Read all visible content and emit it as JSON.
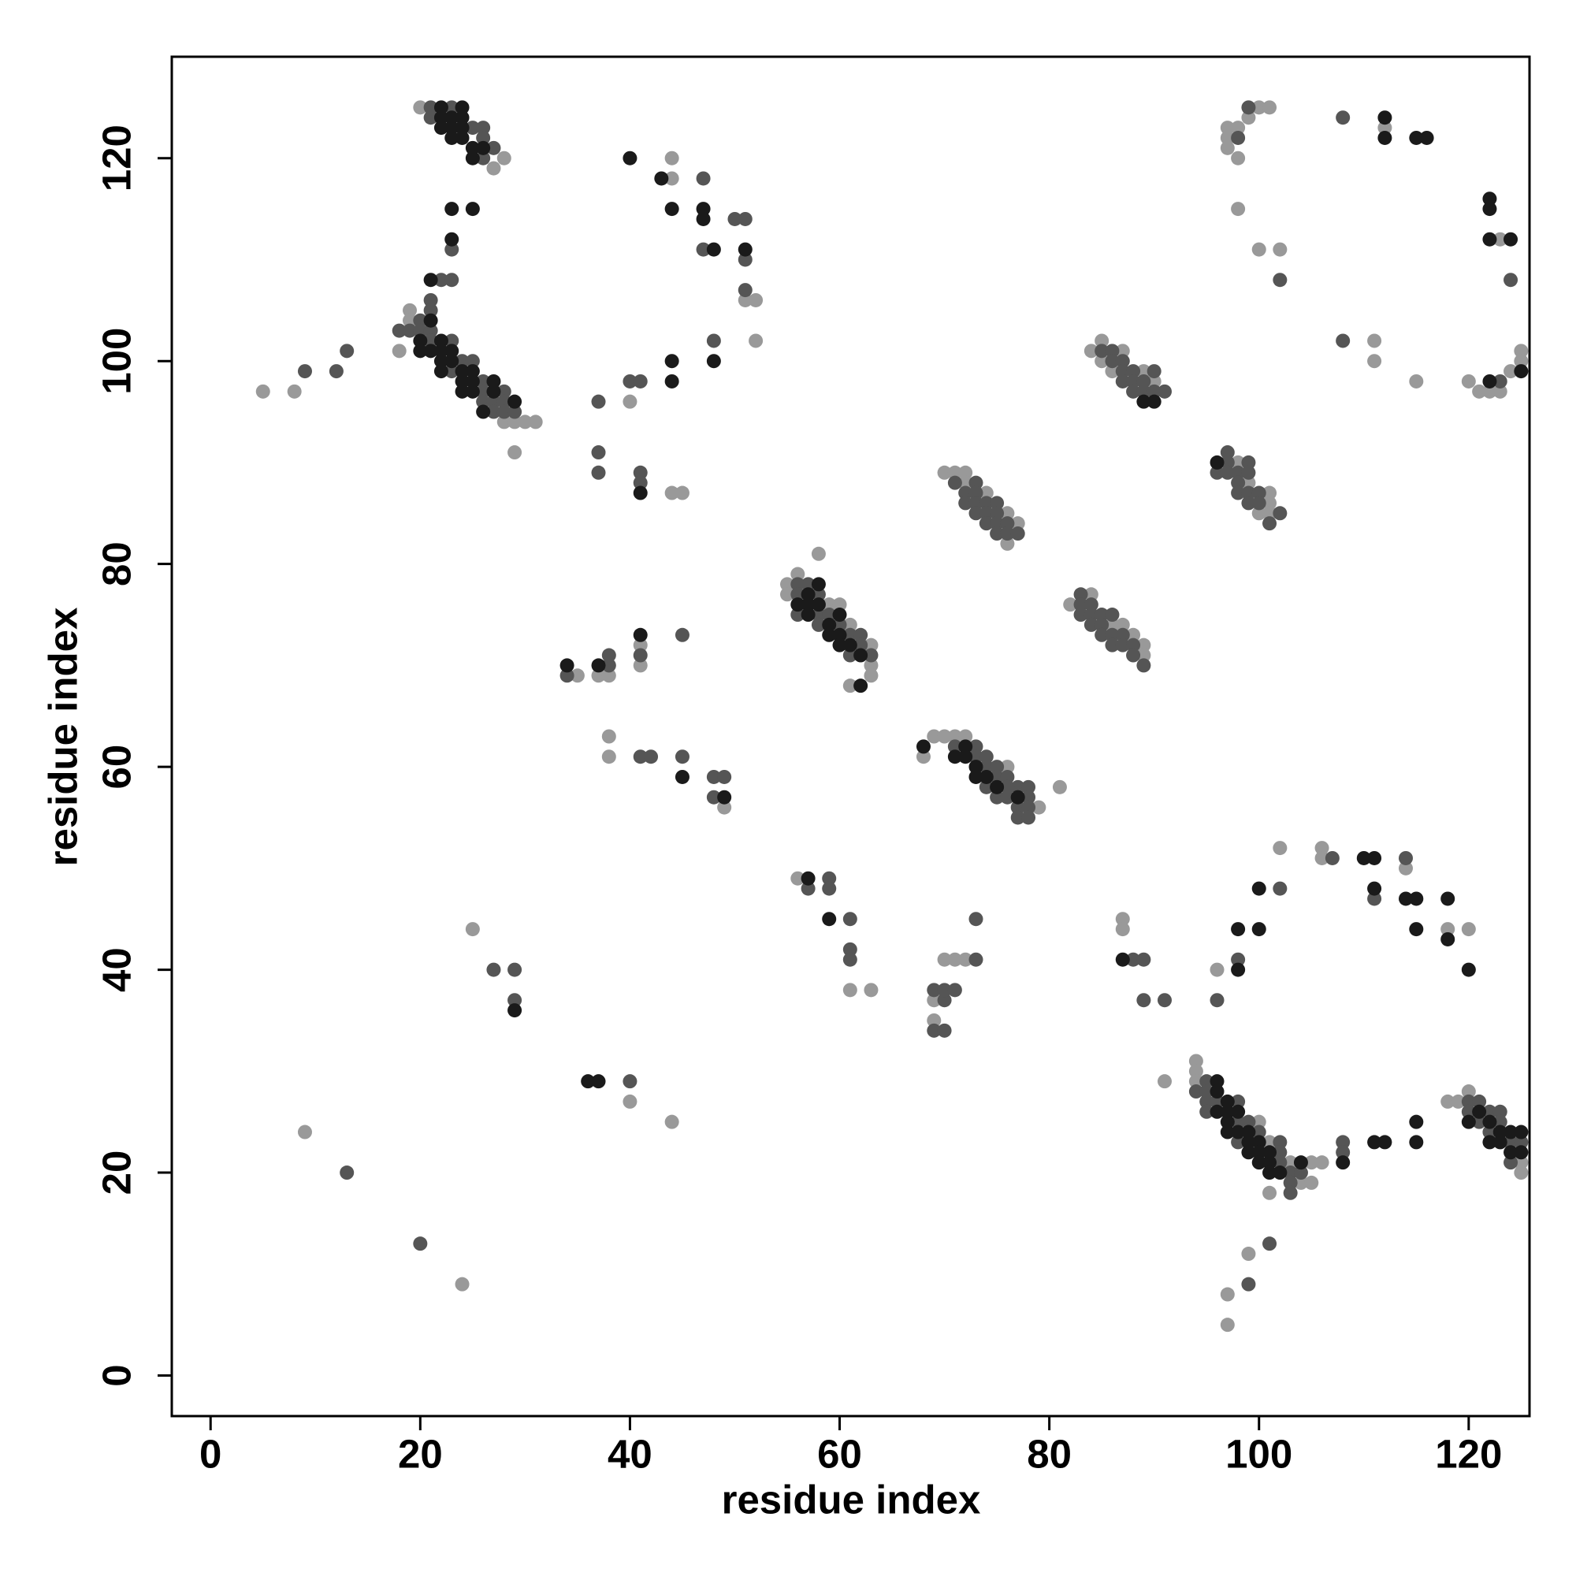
{
  "chart_data": {
    "type": "scatter",
    "xlabel": "residue index",
    "ylabel": "residue index",
    "xlim": [
      -3.7,
      125.8
    ],
    "ylim": [
      -4,
      130
    ],
    "xticks": [
      0,
      20,
      40,
      60,
      80,
      100,
      120
    ],
    "yticks": [
      0,
      20,
      40,
      60,
      80,
      100,
      120
    ],
    "series": [
      {
        "color": "#999999",
        "x": [
          20,
          27,
          28,
          19,
          19,
          18,
          28,
          29,
          30,
          31,
          29,
          5,
          8,
          44,
          44,
          51,
          52,
          52,
          40,
          44,
          45,
          35,
          37,
          38,
          41,
          41,
          38,
          38,
          49,
          58,
          56,
          55,
          55,
          59,
          60,
          61,
          63,
          63,
          63,
          61,
          68,
          69,
          70,
          71,
          72,
          76,
          79,
          81,
          70,
          71,
          72,
          72,
          74,
          76,
          77,
          76,
          82,
          84,
          86,
          87,
          88,
          89,
          89,
          84,
          85,
          87,
          85,
          86,
          89,
          90,
          98,
          99,
          101,
          101,
          100,
          101,
          97,
          98,
          97,
          97,
          98,
          99,
          100,
          101,
          98,
          100,
          102,
          112,
          123,
          111,
          111,
          115,
          120,
          121,
          122,
          123,
          124,
          125,
          125,
          56,
          61,
          63,
          69,
          69,
          70,
          71,
          72,
          87,
          87,
          91,
          96,
          102,
          106,
          106,
          114,
          118,
          120,
          94,
          94,
          94,
          100,
          101,
          103,
          104,
          105,
          101,
          105,
          106,
          118,
          119,
          120,
          125,
          125,
          9,
          24,
          25,
          40,
          44,
          97,
          97,
          99
        ],
        "values": [
          125,
          119,
          120,
          105,
          104,
          101,
          94,
          94,
          94,
          94,
          91,
          97,
          97,
          120,
          118,
          106,
          106,
          102,
          96,
          87,
          87,
          69,
          69,
          69,
          72,
          70,
          63,
          61,
          56,
          81,
          79,
          78,
          77,
          76,
          76,
          74,
          72,
          70,
          69,
          68,
          61,
          63,
          63,
          63,
          63,
          60,
          56,
          58,
          89,
          89,
          89,
          88,
          87,
          85,
          84,
          82,
          76,
          77,
          74,
          74,
          73,
          72,
          71,
          101,
          102,
          101,
          100,
          99,
          99,
          98,
          90,
          88,
          87,
          86,
          85,
          85,
          123,
          123,
          122,
          121,
          120,
          124,
          125,
          125,
          115,
          111,
          111,
          123,
          112,
          102,
          100,
          98,
          98,
          97,
          97,
          97,
          99,
          101,
          100,
          49,
          38,
          38,
          37,
          35,
          41,
          41,
          41,
          45,
          44,
          29,
          40,
          52,
          52,
          51,
          50,
          44,
          44,
          31,
          30,
          29,
          25,
          23,
          21,
          19,
          19,
          18,
          21,
          21,
          27,
          27,
          28,
          21,
          20,
          24,
          9,
          44,
          27,
          25,
          8,
          5,
          12
        ]
      },
      {
        "color": "#555555",
        "x": [
          21,
          21,
          23,
          25,
          26,
          26,
          27,
          26,
          23,
          22,
          23,
          21,
          21,
          20,
          18,
          19,
          20,
          21,
          23,
          21,
          24,
          25,
          23,
          26,
          26,
          28,
          26,
          27,
          28,
          27,
          28,
          29,
          9,
          12,
          13,
          47,
          50,
          51,
          47,
          51,
          51,
          48,
          40,
          41,
          37,
          37,
          37,
          41,
          41,
          34,
          38,
          38,
          41,
          45,
          41,
          42,
          45,
          48,
          49,
          48,
          56,
          57,
          56,
          58,
          56,
          58,
          59,
          58,
          60,
          61,
          62,
          62,
          61,
          63,
          71,
          73,
          73,
          74,
          74,
          75,
          75,
          76,
          77,
          78,
          74,
          76,
          75,
          76,
          78,
          77,
          78,
          77,
          78,
          71,
          73,
          72,
          73,
          72,
          73,
          74,
          75,
          73,
          74,
          75,
          74,
          75,
          76,
          75,
          76,
          77,
          83,
          83,
          84,
          83,
          84,
          85,
          86,
          84,
          85,
          85,
          86,
          87,
          86,
          87,
          88,
          88,
          89,
          85,
          86,
          86,
          87,
          87,
          88,
          90,
          87,
          88,
          89,
          88,
          89,
          90,
          91,
          97,
          97,
          99,
          96,
          97,
          98,
          99,
          98,
          98,
          99,
          100,
          99,
          100,
          102,
          101,
          98,
          99,
          102,
          108,
          124,
          108,
          123,
          57,
          59,
          59,
          61,
          61,
          61,
          69,
          69,
          70,
          70,
          70,
          71,
          73,
          73,
          88,
          89,
          89,
          91,
          96,
          98,
          102,
          107,
          111,
          114,
          95,
          94,
          95,
          95,
          96,
          98,
          95,
          98,
          99,
          100,
          98,
          102,
          102,
          102,
          103,
          103,
          103,
          104,
          108,
          108,
          120,
          120,
          121,
          121,
          122,
          122,
          123,
          123,
          124,
          124,
          125,
          13,
          20,
          27,
          29,
          29,
          40,
          99,
          101
        ],
        "values": [
          125,
          124,
          125,
          123,
          123,
          122,
          121,
          120,
          111,
          108,
          108,
          106,
          105,
          104,
          103,
          103,
          103,
          103,
          102,
          102,
          100,
          100,
          99,
          98,
          97,
          97,
          96,
          96,
          96,
          95,
          95,
          95,
          99,
          99,
          101,
          118,
          114,
          114,
          111,
          110,
          107,
          102,
          98,
          98,
          96,
          91,
          89,
          89,
          88,
          69,
          70,
          71,
          71,
          73,
          61,
          61,
          61,
          59,
          59,
          57,
          78,
          78,
          77,
          77,
          75,
          75,
          75,
          74,
          74,
          73,
          73,
          72,
          71,
          71,
          62,
          62,
          61,
          61,
          60,
          60,
          59,
          59,
          58,
          58,
          58,
          58,
          57,
          57,
          57,
          56,
          56,
          55,
          55,
          88,
          88,
          87,
          87,
          86,
          86,
          86,
          86,
          85,
          85,
          85,
          84,
          84,
          84,
          83,
          83,
          83,
          77,
          76,
          76,
          75,
          75,
          75,
          75,
          74,
          74,
          73,
          73,
          73,
          72,
          72,
          72,
          71,
          70,
          101,
          101,
          100,
          100,
          99,
          99,
          99,
          98,
          98,
          98,
          97,
          97,
          97,
          97,
          91,
          90,
          90,
          89,
          89,
          89,
          89,
          88,
          87,
          87,
          87,
          86,
          86,
          85,
          84,
          122,
          125,
          108,
          124,
          108,
          102,
          98,
          48,
          49,
          48,
          45,
          42,
          41,
          38,
          34,
          34,
          37,
          38,
          38,
          41,
          45,
          41,
          41,
          37,
          37,
          37,
          41,
          48,
          51,
          47,
          51,
          29,
          28,
          28,
          27,
          27,
          27,
          26,
          25,
          25,
          24,
          23,
          23,
          22,
          21,
          20,
          19,
          18,
          20,
          23,
          22,
          27,
          26,
          27,
          25,
          26,
          24,
          26,
          25,
          23,
          21,
          23,
          20,
          13,
          40,
          40,
          37,
          29,
          9,
          13
        ]
      },
      {
        "color": "#1a1a1a",
        "x": [
          22,
          22,
          23,
          23,
          24,
          24,
          23,
          24,
          25,
          26,
          25,
          24,
          22,
          23,
          25,
          23,
          21,
          21,
          22,
          20,
          20,
          21,
          22,
          23,
          22,
          23,
          22,
          24,
          25,
          24,
          25,
          27,
          24,
          25,
          27,
          29,
          26,
          40,
          43,
          44,
          47,
          47,
          48,
          51,
          48,
          44,
          44,
          41,
          34,
          37,
          41,
          45,
          49,
          58,
          57,
          56,
          57,
          58,
          57,
          60,
          59,
          59,
          60,
          60,
          61,
          62,
          62,
          68,
          72,
          71,
          72,
          73,
          73,
          74,
          75,
          77,
          89,
          90,
          96,
          112,
          112,
          115,
          116,
          122,
          122,
          122,
          124,
          122,
          125,
          57,
          59,
          87,
          98,
          98,
          100,
          100,
          110,
          111,
          111,
          114,
          115,
          115,
          118,
          118,
          120,
          96,
          96,
          97,
          96,
          97,
          98,
          97,
          97,
          98,
          99,
          99,
          100,
          99,
          100,
          101,
          100,
          101,
          104,
          101,
          102,
          108,
          111,
          112,
          115,
          115,
          120,
          121,
          122,
          122,
          123,
          123,
          124,
          124,
          125,
          125,
          29,
          36,
          37
        ],
        "values": [
          125,
          124,
          124,
          123,
          125,
          124,
          122,
          122,
          121,
          121,
          120,
          123,
          123,
          115,
          115,
          112,
          108,
          104,
          102,
          102,
          101,
          101,
          101,
          101,
          100,
          100,
          99,
          99,
          99,
          98,
          98,
          98,
          97,
          97,
          97,
          96,
          95,
          120,
          118,
          115,
          115,
          114,
          111,
          111,
          100,
          100,
          98,
          87,
          70,
          70,
          73,
          59,
          57,
          78,
          77,
          76,
          76,
          76,
          75,
          75,
          74,
          73,
          73,
          72,
          72,
          71,
          68,
          62,
          62,
          61,
          61,
          60,
          59,
          59,
          58,
          57,
          96,
          96,
          90,
          124,
          122,
          122,
          122,
          116,
          115,
          112,
          112,
          98,
          99,
          49,
          45,
          41,
          44,
          40,
          48,
          44,
          51,
          51,
          48,
          47,
          47,
          44,
          47,
          43,
          40,
          29,
          28,
          27,
          26,
          26,
          26,
          25,
          24,
          24,
          24,
          23,
          23,
          22,
          22,
          22,
          21,
          21,
          21,
          20,
          20,
          21,
          23,
          23,
          25,
          23,
          25,
          26,
          25,
          23,
          24,
          23,
          24,
          22,
          24,
          22,
          36,
          29,
          29
        ]
      }
    ]
  }
}
